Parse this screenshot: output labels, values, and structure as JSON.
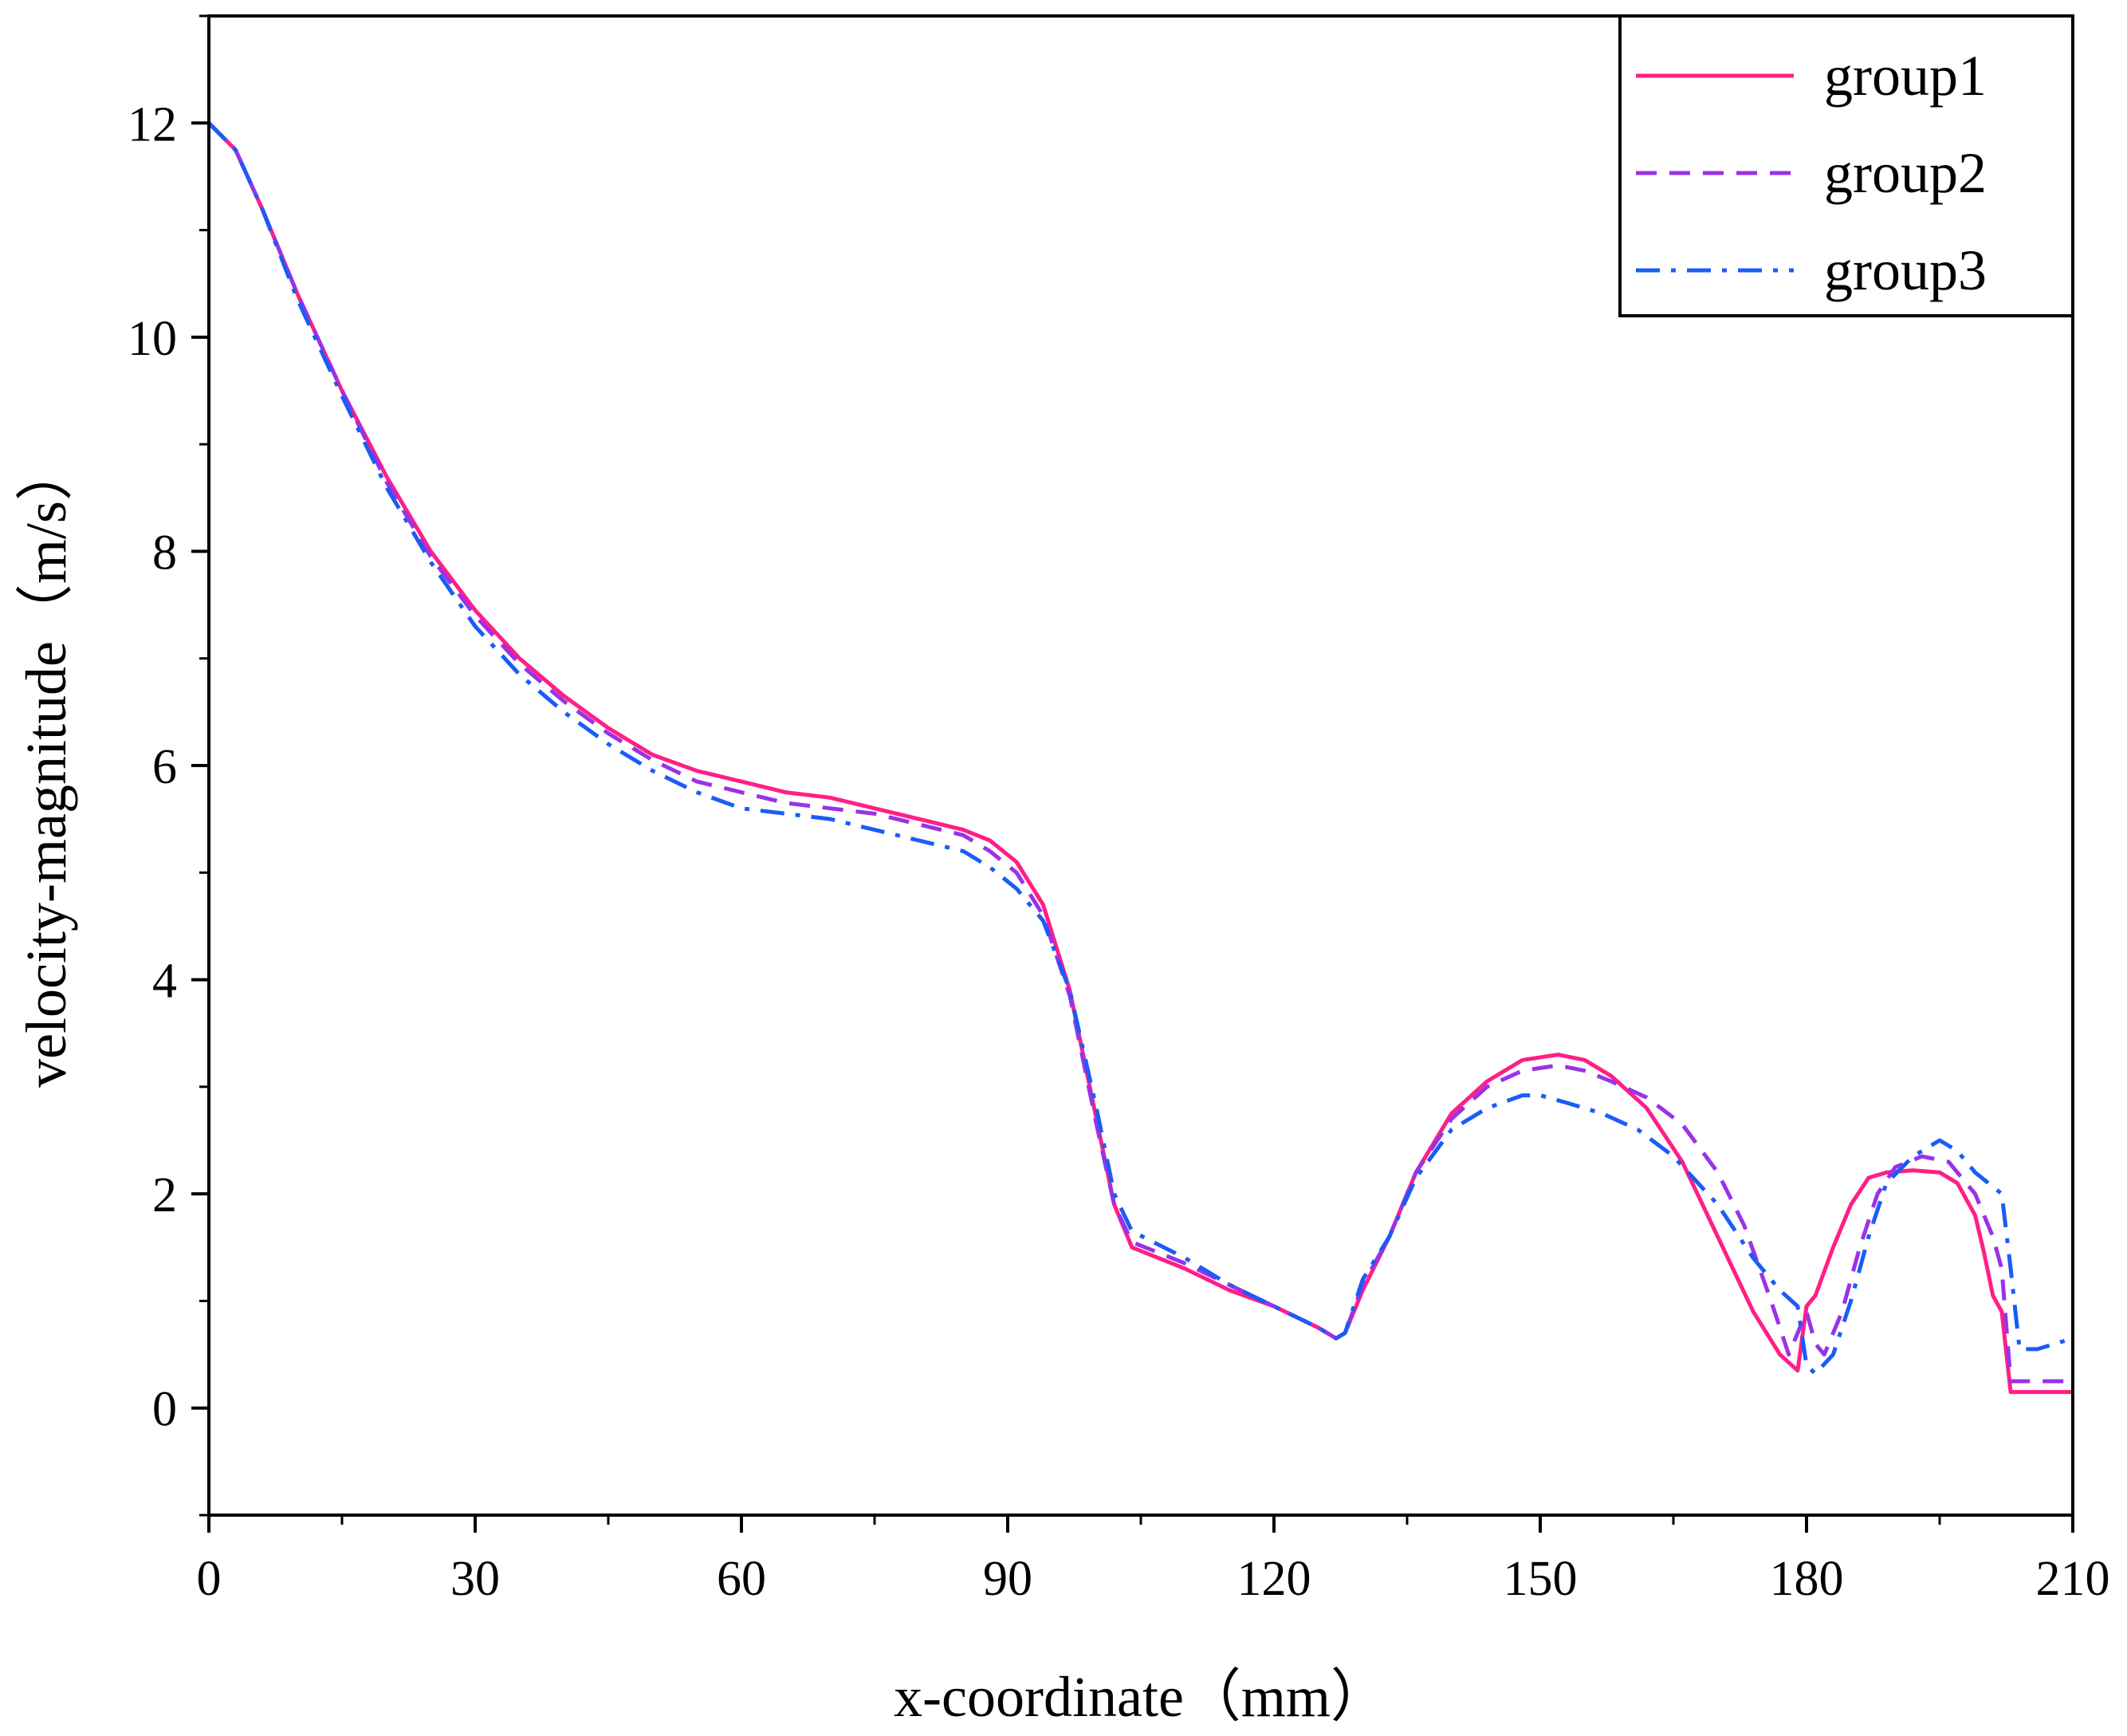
{
  "chart_data": {
    "type": "line",
    "title": "",
    "xlabel": "x-coordinate（mm）",
    "ylabel": "velocity-magnitude（m/s）",
    "xlim": [
      0,
      210
    ],
    "ylim": [
      -1,
      13
    ],
    "xticks": [
      0,
      30,
      60,
      90,
      120,
      150,
      180,
      210
    ],
    "yticks": [
      0,
      2,
      4,
      6,
      8,
      10,
      12
    ],
    "xtick_labels": [
      "0",
      "30",
      "60",
      "90",
      "120",
      "150",
      "180",
      "210"
    ],
    "ytick_labels": [
      "0",
      "2",
      "4",
      "6",
      "8",
      "10",
      "12"
    ],
    "x_minor_step": 15,
    "y_minor_step": 1,
    "legend_position": "top-right",
    "series": [
      {
        "name": "group1",
        "color": "#ff1f86",
        "dash": "solid",
        "points": [
          [
            0,
            12.0
          ],
          [
            3,
            11.75
          ],
          [
            6,
            11.2
          ],
          [
            10,
            10.4
          ],
          [
            15,
            9.5
          ],
          [
            20,
            8.7
          ],
          [
            25,
            8.0
          ],
          [
            30,
            7.45
          ],
          [
            35,
            7.0
          ],
          [
            40,
            6.65
          ],
          [
            45,
            6.35
          ],
          [
            50,
            6.1
          ],
          [
            55,
            5.95
          ],
          [
            60,
            5.85
          ],
          [
            65,
            5.75
          ],
          [
            70,
            5.7
          ],
          [
            75,
            5.6
          ],
          [
            80,
            5.5
          ],
          [
            85,
            5.4
          ],
          [
            88,
            5.3
          ],
          [
            91,
            5.1
          ],
          [
            94,
            4.7
          ],
          [
            97,
            3.9
          ],
          [
            100,
            2.7
          ],
          [
            102,
            1.9
          ],
          [
            104,
            1.5
          ],
          [
            110,
            1.3
          ],
          [
            115,
            1.1
          ],
          [
            120,
            0.95
          ],
          [
            125,
            0.75
          ],
          [
            127,
            0.65
          ],
          [
            128,
            0.7
          ],
          [
            130,
            1.1
          ],
          [
            133,
            1.6
          ],
          [
            136,
            2.2
          ],
          [
            140,
            2.75
          ],
          [
            144,
            3.05
          ],
          [
            148,
            3.25
          ],
          [
            152,
            3.3
          ],
          [
            155,
            3.25
          ],
          [
            158,
            3.1
          ],
          [
            162,
            2.8
          ],
          [
            166,
            2.3
          ],
          [
            170,
            1.6
          ],
          [
            174,
            0.9
          ],
          [
            177,
            0.5
          ],
          [
            179,
            0.35
          ],
          [
            180,
            0.95
          ],
          [
            181,
            1.05
          ],
          [
            183,
            1.5
          ],
          [
            185,
            1.9
          ],
          [
            187,
            2.15
          ],
          [
            189,
            2.2
          ],
          [
            192,
            2.22
          ],
          [
            195,
            2.2
          ],
          [
            197,
            2.1
          ],
          [
            199,
            1.8
          ],
          [
            200,
            1.45
          ],
          [
            201,
            1.05
          ],
          [
            202,
            0.9
          ],
          [
            203,
            0.15
          ],
          [
            205,
            0.15
          ],
          [
            210,
            0.15
          ]
        ]
      },
      {
        "name": "group2",
        "color": "#9a32e8",
        "dash": "dashed",
        "points": [
          [
            0,
            12.0
          ],
          [
            3,
            11.75
          ],
          [
            6,
            11.2
          ],
          [
            10,
            10.4
          ],
          [
            15,
            9.5
          ],
          [
            20,
            8.65
          ],
          [
            25,
            7.95
          ],
          [
            30,
            7.4
          ],
          [
            35,
            6.95
          ],
          [
            40,
            6.6
          ],
          [
            45,
            6.3
          ],
          [
            50,
            6.05
          ],
          [
            55,
            5.85
          ],
          [
            60,
            5.75
          ],
          [
            65,
            5.65
          ],
          [
            70,
            5.6
          ],
          [
            75,
            5.55
          ],
          [
            80,
            5.45
          ],
          [
            85,
            5.35
          ],
          [
            88,
            5.2
          ],
          [
            91,
            5.0
          ],
          [
            94,
            4.6
          ],
          [
            97,
            3.85
          ],
          [
            100,
            2.65
          ],
          [
            102,
            1.9
          ],
          [
            104,
            1.55
          ],
          [
            110,
            1.35
          ],
          [
            115,
            1.15
          ],
          [
            120,
            0.95
          ],
          [
            125,
            0.75
          ],
          [
            127,
            0.65
          ],
          [
            128,
            0.7
          ],
          [
            130,
            1.15
          ],
          [
            133,
            1.6
          ],
          [
            136,
            2.2
          ],
          [
            140,
            2.7
          ],
          [
            144,
            3.0
          ],
          [
            148,
            3.15
          ],
          [
            152,
            3.2
          ],
          [
            155,
            3.15
          ],
          [
            158,
            3.05
          ],
          [
            162,
            2.9
          ],
          [
            166,
            2.65
          ],
          [
            170,
            2.2
          ],
          [
            173,
            1.7
          ],
          [
            176,
            1.0
          ],
          [
            178,
            0.5
          ],
          [
            180,
            0.9
          ],
          [
            181,
            0.6
          ],
          [
            182,
            0.5
          ],
          [
            184,
            0.9
          ],
          [
            186,
            1.5
          ],
          [
            188,
            2.0
          ],
          [
            190,
            2.25
          ],
          [
            193,
            2.35
          ],
          [
            196,
            2.3
          ],
          [
            199,
            2.0
          ],
          [
            201,
            1.6
          ],
          [
            202,
            1.3
          ],
          [
            203,
            0.25
          ],
          [
            205,
            0.25
          ],
          [
            210,
            0.25
          ]
        ]
      },
      {
        "name": "group3",
        "color": "#1a5cf5",
        "dash": "dashdot",
        "points": [
          [
            0,
            12.0
          ],
          [
            3,
            11.75
          ],
          [
            6,
            11.2
          ],
          [
            10,
            10.35
          ],
          [
            15,
            9.45
          ],
          [
            20,
            8.6
          ],
          [
            25,
            7.9
          ],
          [
            30,
            7.3
          ],
          [
            35,
            6.85
          ],
          [
            40,
            6.5
          ],
          [
            45,
            6.2
          ],
          [
            50,
            5.95
          ],
          [
            55,
            5.75
          ],
          [
            60,
            5.6
          ],
          [
            65,
            5.55
          ],
          [
            70,
            5.5
          ],
          [
            75,
            5.4
          ],
          [
            80,
            5.3
          ],
          [
            85,
            5.2
          ],
          [
            88,
            5.05
          ],
          [
            91,
            4.85
          ],
          [
            94,
            4.55
          ],
          [
            97,
            3.9
          ],
          [
            100,
            2.8
          ],
          [
            102,
            2.0
          ],
          [
            104,
            1.65
          ],
          [
            110,
            1.4
          ],
          [
            115,
            1.15
          ],
          [
            120,
            0.95
          ],
          [
            125,
            0.75
          ],
          [
            127,
            0.65
          ],
          [
            128,
            0.7
          ],
          [
            130,
            1.2
          ],
          [
            133,
            1.6
          ],
          [
            136,
            2.15
          ],
          [
            140,
            2.6
          ],
          [
            144,
            2.8
          ],
          [
            148,
            2.92
          ],
          [
            150,
            2.92
          ],
          [
            153,
            2.85
          ],
          [
            157,
            2.75
          ],
          [
            161,
            2.6
          ],
          [
            165,
            2.35
          ],
          [
            170,
            1.9
          ],
          [
            174,
            1.4
          ],
          [
            177,
            1.1
          ],
          [
            179,
            0.95
          ],
          [
            180,
            0.4
          ],
          [
            181,
            0.32
          ],
          [
            183,
            0.5
          ],
          [
            185,
            1.0
          ],
          [
            187,
            1.6
          ],
          [
            189,
            2.1
          ],
          [
            192,
            2.35
          ],
          [
            195,
            2.5
          ],
          [
            197,
            2.4
          ],
          [
            199,
            2.2
          ],
          [
            202,
            2.0
          ],
          [
            203,
            1.3
          ],
          [
            204,
            0.55
          ],
          [
            206,
            0.55
          ],
          [
            208,
            0.6
          ],
          [
            210,
            0.65
          ]
        ]
      }
    ]
  }
}
